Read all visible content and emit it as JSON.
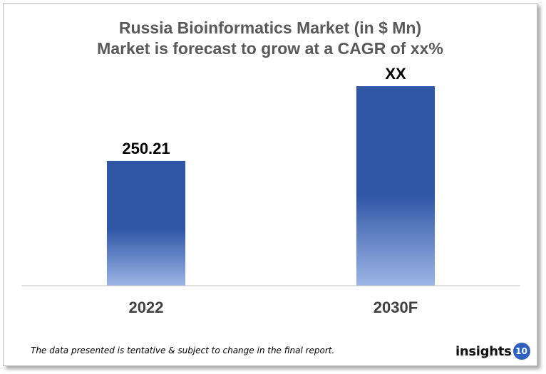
{
  "chart_data": {
    "type": "bar",
    "title": "Russia Bioinformatics Market (in $ Mn)",
    "subtitle": "Market is forecast to grow at a CAGR of xx%",
    "categories": [
      "2022",
      "2030F"
    ],
    "values": [
      250.21,
      400
    ],
    "value_labels": [
      "250.21",
      "XX"
    ],
    "xlabel": "",
    "ylabel": "",
    "ylim": [
      0,
      480
    ],
    "grid": false,
    "legend": "none",
    "bar_color_top": "#3057a6",
    "bar_color_bottom": "#9db5e6"
  },
  "footnote": "The data presented is tentative & subject to change in the final report.",
  "logo": {
    "text": "insights",
    "badge": "10",
    "badge_color": "#2f5fbf"
  }
}
